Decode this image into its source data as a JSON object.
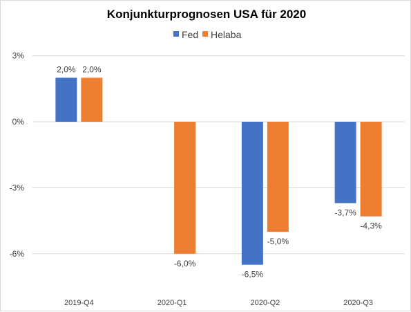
{
  "chart_data": {
    "type": "bar",
    "title": "Konjunkturprognosen USA für 2020",
    "categories": [
      "2019-Q4",
      "2020-Q1",
      "2020-Q2",
      "2020-Q3"
    ],
    "series": [
      {
        "name": "Fed",
        "color": "#4472C4",
        "values": [
          2.0,
          null,
          -6.5,
          -3.7
        ],
        "labels": [
          "2,0%",
          "",
          "-6,5%",
          "-3,7%"
        ]
      },
      {
        "name": "Helaba",
        "color": "#ED7D31",
        "values": [
          2.0,
          -6.0,
          -5.0,
          -4.3
        ],
        "labels": [
          "2,0%",
          "-6,0%",
          "-5,0%",
          "-4,3%"
        ]
      }
    ],
    "yticks": [
      3,
      0,
      -3,
      -6
    ],
    "ytick_labels": [
      "3%",
      "0%",
      "-3%",
      "-6%"
    ],
    "ylim": [
      -7.5,
      3
    ],
    "legend_position": "top",
    "grid": true
  }
}
